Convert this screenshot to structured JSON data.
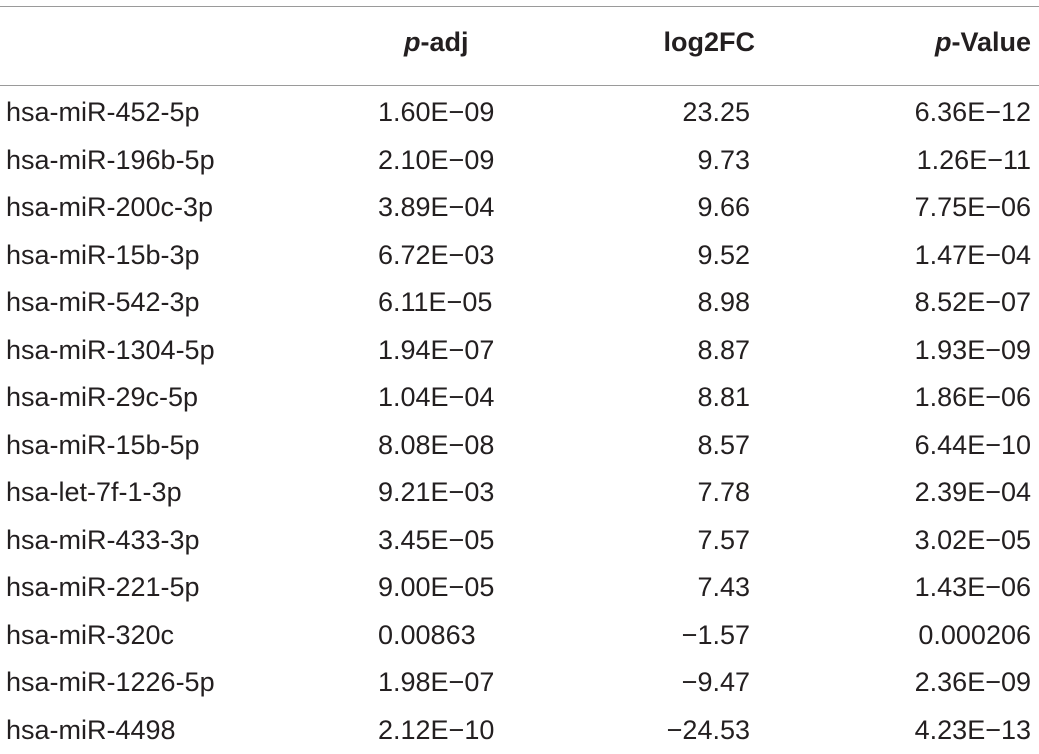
{
  "table": {
    "headers": {
      "name": "",
      "padj_italic": "p",
      "padj_rest": "-adj",
      "log2fc": "log2FC",
      "pvalue_italic": "p",
      "pvalue_rest": "-Value"
    },
    "rows": [
      {
        "name": "hsa-miR-452-5p",
        "padj": "1.60E−09",
        "log2fc": "23.25",
        "pvalue": "6.36E−12"
      },
      {
        "name": "hsa-miR-196b-5p",
        "padj": "2.10E−09",
        "log2fc": "9.73",
        "pvalue": "1.26E−11"
      },
      {
        "name": "hsa-miR-200c-3p",
        "padj": "3.89E−04",
        "log2fc": "9.66",
        "pvalue": "7.75E−06"
      },
      {
        "name": "hsa-miR-15b-3p",
        "padj": "6.72E−03",
        "log2fc": "9.52",
        "pvalue": "1.47E−04"
      },
      {
        "name": "hsa-miR-542-3p",
        "padj": "6.11E−05",
        "log2fc": "8.98",
        "pvalue": "8.52E−07"
      },
      {
        "name": "hsa-miR-1304-5p",
        "padj": "1.94E−07",
        "log2fc": "8.87",
        "pvalue": "1.93E−09"
      },
      {
        "name": "hsa-miR-29c-5p",
        "padj": "1.04E−04",
        "log2fc": "8.81",
        "pvalue": "1.86E−06"
      },
      {
        "name": "hsa-miR-15b-5p",
        "padj": "8.08E−08",
        "log2fc": "8.57",
        "pvalue": "6.44E−10"
      },
      {
        "name": "hsa-let-7f-1-3p",
        "padj": "9.21E−03",
        "log2fc": "7.78",
        "pvalue": "2.39E−04"
      },
      {
        "name": "hsa-miR-433-3p",
        "padj": "3.45E−05",
        "log2fc": "7.57",
        "pvalue": "3.02E−05"
      },
      {
        "name": "hsa-miR-221-5p",
        "padj": "9.00E−05",
        "log2fc": "7.43",
        "pvalue": "1.43E−06"
      },
      {
        "name": "hsa-miR-320c",
        "padj": "0.00863",
        "log2fc": "−1.57",
        "pvalue": "0.000206"
      },
      {
        "name": "hsa-miR-1226-5p",
        "padj": "1.98E−07",
        "log2fc": "−9.47",
        "pvalue": "2.36E−09"
      },
      {
        "name": "hsa-miR-4498",
        "padj": "2.12E−10",
        "log2fc": "−24.53",
        "pvalue": "4.23E−13"
      }
    ]
  }
}
